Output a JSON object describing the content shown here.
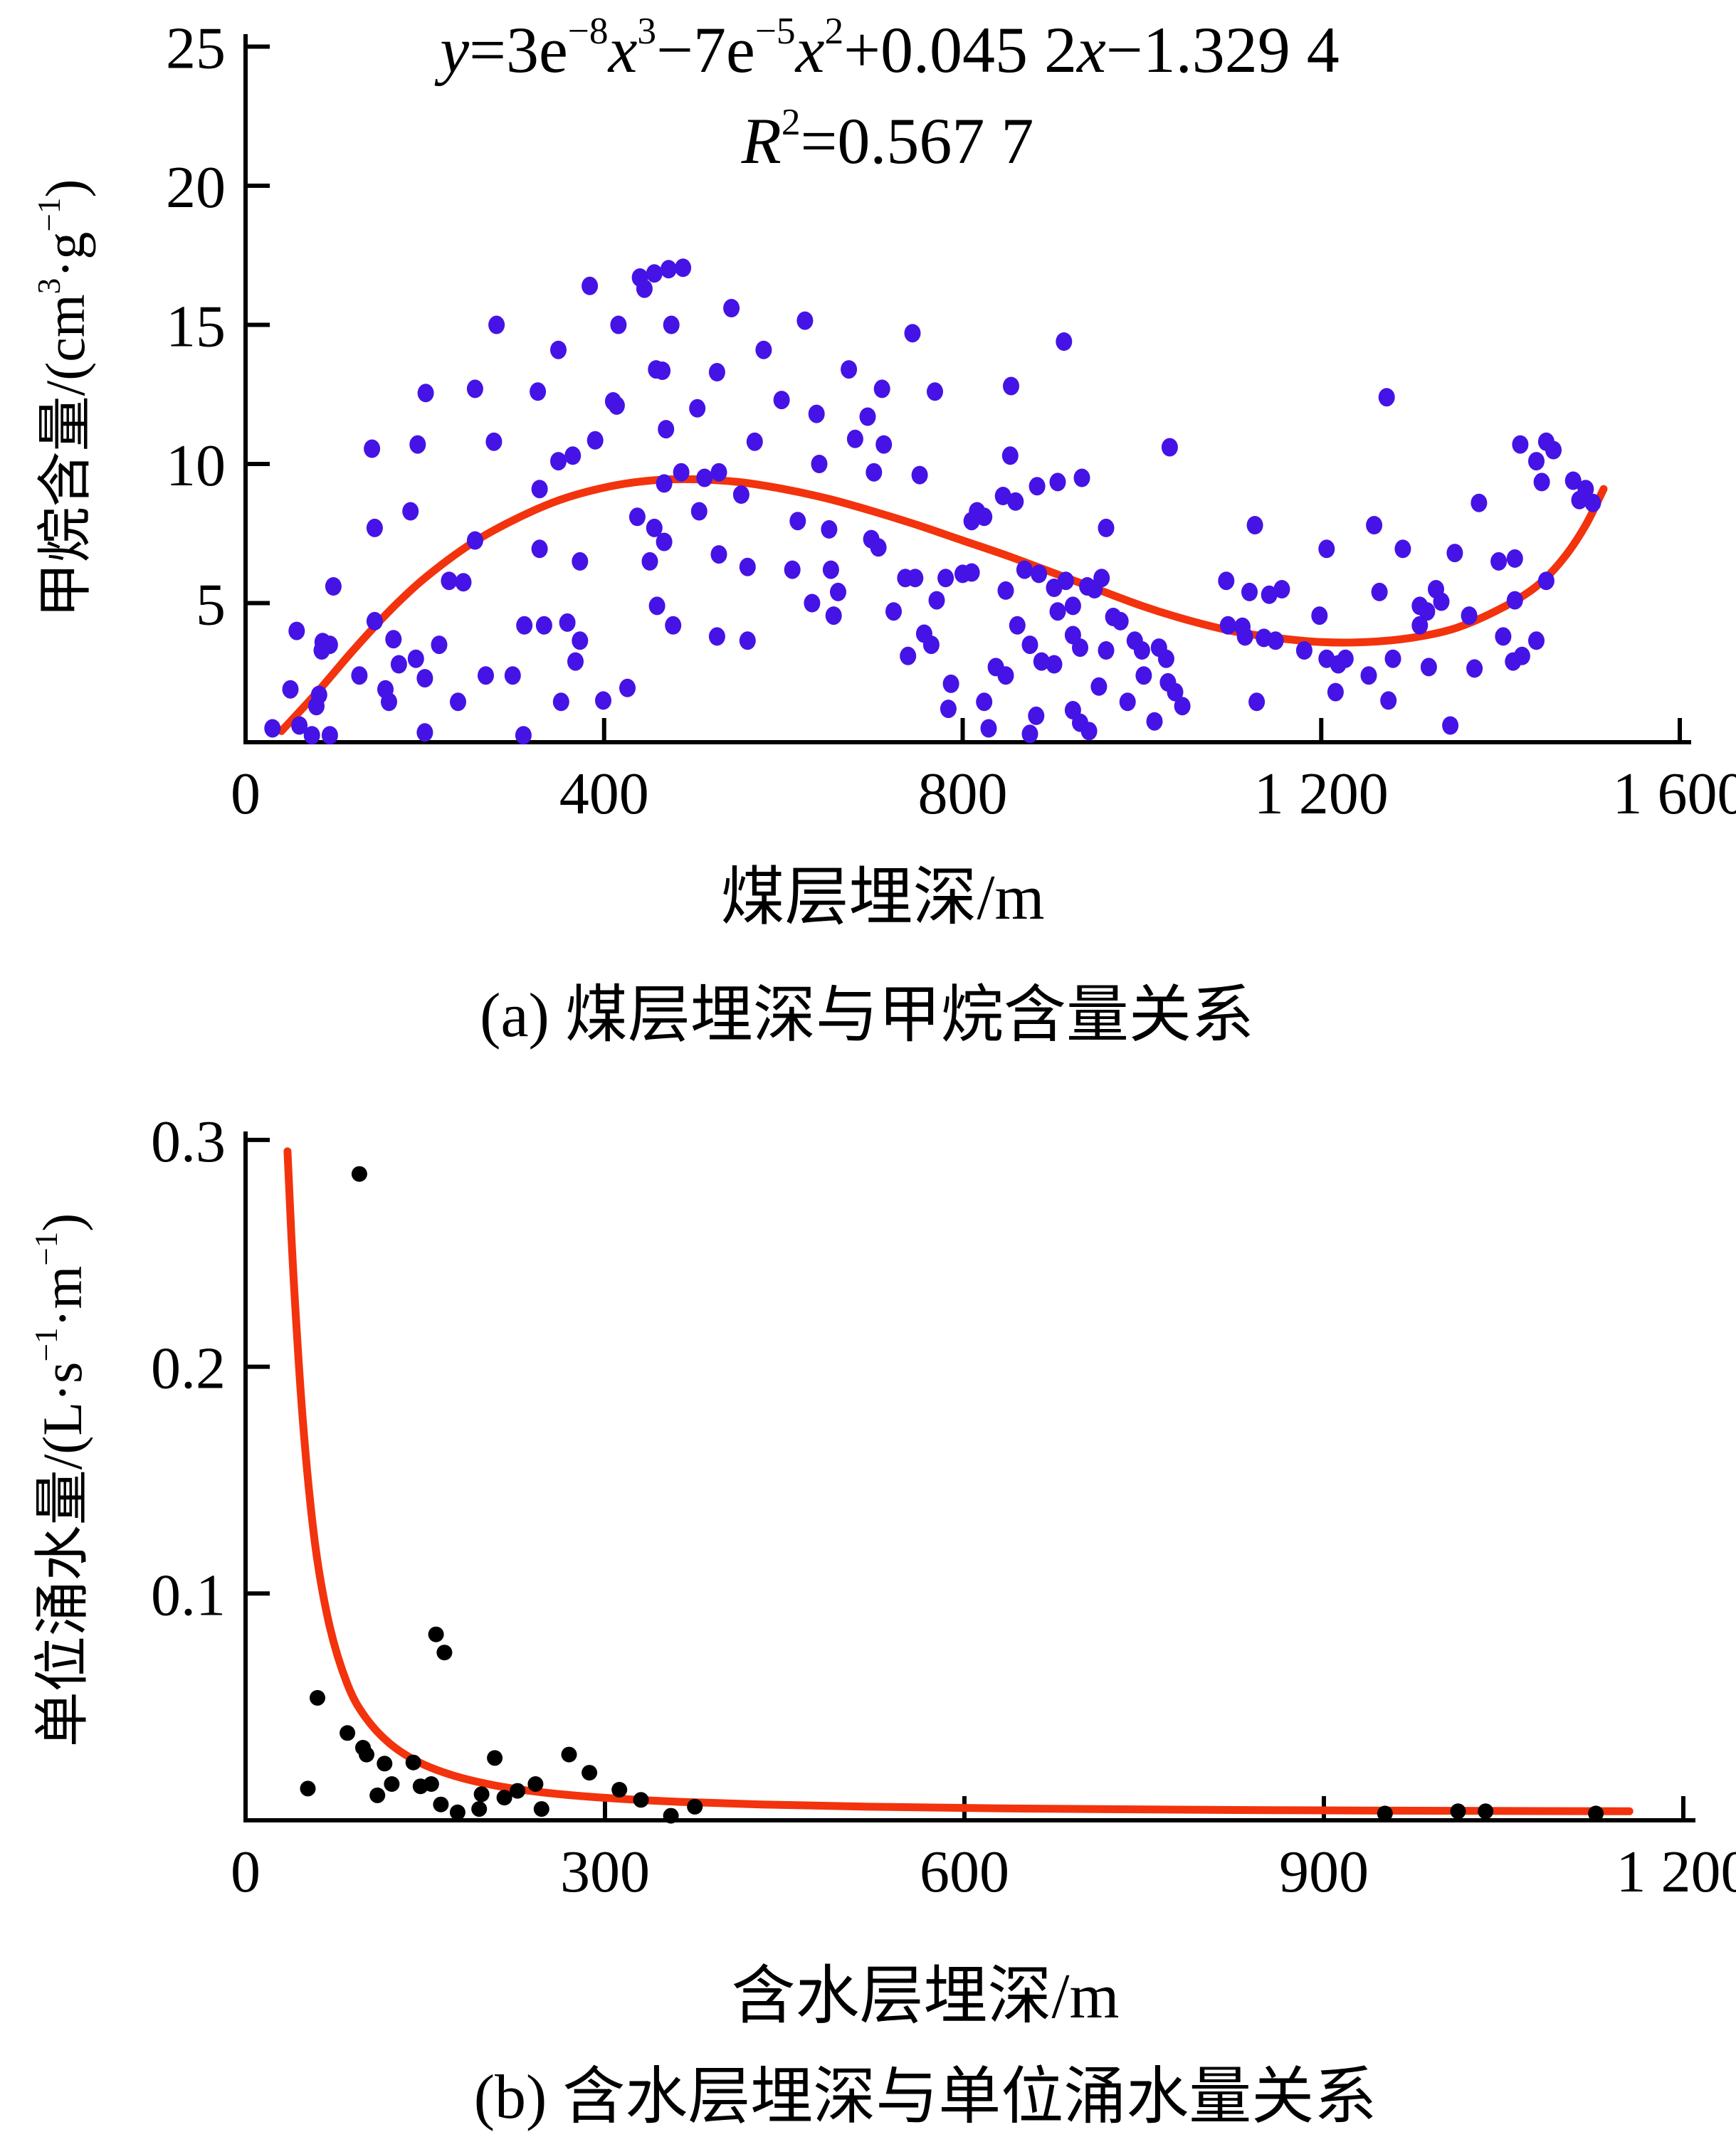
{
  "figure": {
    "background": "#ffffff",
    "accent_colors": {
      "scatter_a": "#4513e6",
      "scatter_b": "#000000",
      "fit_curve": "#f2330d",
      "axis": "#000000"
    }
  },
  "chart_data": [
    {
      "id": "a",
      "type": "scatter",
      "caption": "(a) 煤层埋深与甲烷含量关系",
      "equation_line1_parts": [
        {
          "t": "y",
          "i": true
        },
        {
          "t": "=3e"
        },
        {
          "sup": "−8"
        },
        {
          "t": "x",
          "i": true
        },
        {
          "sup": "3"
        },
        {
          "t": "−7e"
        },
        {
          "sup": "−5"
        },
        {
          "t": "x",
          "i": true
        },
        {
          "sup": "2"
        },
        {
          "t": "+0.045 2"
        },
        {
          "t": "x",
          "i": true
        },
        {
          "t": "−1.329 4"
        }
      ],
      "equation_line2_parts": [
        {
          "t": "R",
          "i": true
        },
        {
          "sup": "2"
        },
        {
          "t": "=0.567 7"
        }
      ],
      "x_axis": {
        "label": "煤层埋深/m",
        "range": [
          0,
          1600
        ],
        "ticks": [
          {
            "v": 0,
            "label": "0"
          },
          {
            "v": 400,
            "label": "400"
          },
          {
            "v": 800,
            "label": "800"
          },
          {
            "v": 1200,
            "label": "1 200"
          },
          {
            "v": 1600,
            "label": "1 600"
          }
        ]
      },
      "y_axis": {
        "label_parts": [
          {
            "t": "甲烷含量/(cm"
          },
          {
            "sup": "3"
          },
          {
            "t": "·g"
          },
          {
            "sup": "−1"
          },
          {
            "t": ")"
          }
        ],
        "range": [
          0,
          25
        ],
        "ticks": [
          {
            "v": 5,
            "label": "5"
          },
          {
            "v": 10,
            "label": "10"
          },
          {
            "v": 15,
            "label": "15"
          },
          {
            "v": 20,
            "label": "20"
          },
          {
            "v": 25,
            "label": "25"
          }
        ]
      },
      "marker": {
        "shape": "ellipse",
        "rx": 11.5,
        "ry": 13
      },
      "points": [
        [
          30,
          0.5
        ],
        [
          57,
          4.0
        ],
        [
          85,
          3.3
        ],
        [
          86,
          3.6
        ],
        [
          94,
          3.5
        ],
        [
          50,
          1.9
        ],
        [
          82,
          1.7
        ],
        [
          79,
          1.3
        ],
        [
          60,
          0.6
        ],
        [
          74,
          0.25
        ],
        [
          94,
          0.25
        ],
        [
          127,
          2.4
        ],
        [
          156,
          1.9
        ],
        [
          165,
          3.7
        ],
        [
          171,
          2.8
        ],
        [
          200,
          2.3
        ],
        [
          216,
          3.5
        ],
        [
          200,
          0.35
        ],
        [
          268,
          2.4
        ],
        [
          311,
          4.2
        ],
        [
          359,
          4.3
        ],
        [
          368,
          2.9
        ],
        [
          399,
          1.5
        ],
        [
          98,
          5.6
        ],
        [
          144,
          4.35
        ],
        [
          190,
          3.0
        ],
        [
          160,
          1.45
        ],
        [
          237,
          1.45
        ],
        [
          298,
          2.4
        ],
        [
          352,
          1.45
        ],
        [
          310,
          0.25
        ],
        [
          141,
          10.55
        ],
        [
          192,
          10.7
        ],
        [
          277,
          10.8
        ],
        [
          390,
          10.85
        ],
        [
          184,
          8.3
        ],
        [
          144,
          7.7
        ],
        [
          227,
          5.8
        ],
        [
          243,
          5.75
        ],
        [
          256,
          7.25
        ],
        [
          328,
          9.1
        ],
        [
          328,
          6.95
        ],
        [
          333,
          4.2
        ],
        [
          373,
          3.65
        ],
        [
          373,
          6.5
        ],
        [
          349,
          10.1
        ],
        [
          365,
          10.3
        ],
        [
          410,
          12.25
        ],
        [
          414,
          12.1
        ],
        [
          504,
          12.0
        ],
        [
          469,
          11.25
        ],
        [
          426,
          1.95
        ],
        [
          459,
          4.9
        ],
        [
          477,
          4.2
        ],
        [
          526,
          3.8
        ],
        [
          437,
          8.1
        ],
        [
          456,
          7.7
        ],
        [
          467,
          7.2
        ],
        [
          506,
          8.3
        ],
        [
          451,
          6.5
        ],
        [
          528,
          6.75
        ],
        [
          467,
          9.3
        ],
        [
          486,
          9.7
        ],
        [
          512,
          9.5
        ],
        [
          528,
          9.7
        ],
        [
          384,
          16.4
        ],
        [
          440,
          16.7
        ],
        [
          456,
          16.85
        ],
        [
          472,
          17.0
        ],
        [
          488,
          17.05
        ],
        [
          445,
          16.3
        ],
        [
          280,
          15.0
        ],
        [
          416,
          15.0
        ],
        [
          475,
          15.0
        ],
        [
          349,
          14.1
        ],
        [
          458,
          13.4
        ],
        [
          465,
          13.35
        ],
        [
          526,
          13.3
        ],
        [
          201,
          12.55
        ],
        [
          256,
          12.7
        ],
        [
          326,
          12.6
        ],
        [
          542,
          15.6
        ],
        [
          624,
          15.15
        ],
        [
          744,
          14.7
        ],
        [
          913,
          14.4
        ],
        [
          578,
          14.1
        ],
        [
          673,
          13.4
        ],
        [
          710,
          12.7
        ],
        [
          769,
          12.6
        ],
        [
          854,
          12.8
        ],
        [
          553,
          8.9
        ],
        [
          616,
          7.95
        ],
        [
          651,
          7.65
        ],
        [
          653,
          6.2
        ],
        [
          610,
          6.2
        ],
        [
          560,
          3.65
        ],
        [
          560,
          6.3
        ],
        [
          632,
          5.0
        ],
        [
          656,
          4.55
        ],
        [
          698,
          7.3
        ],
        [
          706,
          7.0
        ],
        [
          598,
          12.3
        ],
        [
          637,
          11.8
        ],
        [
          680,
          10.9
        ],
        [
          694,
          11.7
        ],
        [
          712,
          10.7
        ],
        [
          568,
          10.8
        ],
        [
          640,
          10.0
        ],
        [
          701,
          9.7
        ],
        [
          752,
          9.6
        ],
        [
          853,
          10.3
        ],
        [
          883,
          9.2
        ],
        [
          906,
          9.35
        ],
        [
          845,
          8.85
        ],
        [
          859,
          8.65
        ],
        [
          933,
          9.5
        ],
        [
          1031,
          10.6
        ],
        [
          816,
          8.3
        ],
        [
          824,
          8.1
        ],
        [
          810,
          7.95
        ],
        [
          960,
          7.7
        ],
        [
          661,
          5.4
        ],
        [
          736,
          5.9
        ],
        [
          747,
          5.9
        ],
        [
          781,
          5.9
        ],
        [
          800,
          6.05
        ],
        [
          810,
          6.1
        ],
        [
          771,
          5.1
        ],
        [
          723,
          4.7
        ],
        [
          757,
          3.9
        ],
        [
          765,
          3.5
        ],
        [
          739,
          3.1
        ],
        [
          869,
          6.2
        ],
        [
          885,
          6.05
        ],
        [
          902,
          5.55
        ],
        [
          915,
          5.8
        ],
        [
          906,
          4.7
        ],
        [
          923,
          4.9
        ],
        [
          939,
          5.6
        ],
        [
          947,
          5.5
        ],
        [
          955,
          5.9
        ],
        [
          848,
          5.45
        ],
        [
          861,
          4.2
        ],
        [
          837,
          2.7
        ],
        [
          848,
          2.4
        ],
        [
          824,
          1.45
        ],
        [
          787,
          2.1
        ],
        [
          784,
          1.2
        ],
        [
          875,
          3.5
        ],
        [
          888,
          2.9
        ],
        [
          902,
          2.8
        ],
        [
          923,
          3.85
        ],
        [
          931,
          3.4
        ],
        [
          968,
          4.5
        ],
        [
          976,
          4.35
        ],
        [
          960,
          3.3
        ],
        [
          992,
          3.65
        ],
        [
          1000,
          3.3
        ],
        [
          1019,
          3.4
        ],
        [
          1027,
          3.0
        ],
        [
          1002,
          2.4
        ],
        [
          1029,
          2.15
        ],
        [
          1037,
          1.8
        ],
        [
          984,
          1.45
        ],
        [
          952,
          2.0
        ],
        [
          829,
          0.5
        ],
        [
          882,
          0.95
        ],
        [
          875,
          0.3
        ],
        [
          923,
          1.15
        ],
        [
          931,
          0.7
        ],
        [
          941,
          0.4
        ],
        [
          1014,
          0.75
        ],
        [
          1045,
          1.3
        ],
        [
          1273,
          12.4
        ],
        [
          1422,
          10.7
        ],
        [
          1451,
          10.8
        ],
        [
          1459,
          10.5
        ],
        [
          1440,
          10.1
        ],
        [
          1446,
          9.35
        ],
        [
          1481,
          9.4
        ],
        [
          1488,
          8.7
        ],
        [
          1495,
          9.1
        ],
        [
          1503,
          8.6
        ],
        [
          1376,
          8.6
        ],
        [
          1126,
          7.8
        ],
        [
          1259,
          7.8
        ],
        [
          1291,
          6.95
        ],
        [
          1349,
          6.8
        ],
        [
          1206,
          6.95
        ],
        [
          1398,
          6.5
        ],
        [
          1416,
          6.6
        ],
        [
          1094,
          5.8
        ],
        [
          1120,
          5.4
        ],
        [
          1142,
          5.3
        ],
        [
          1156,
          5.5
        ],
        [
          1265,
          5.4
        ],
        [
          1328,
          5.5
        ],
        [
          1334,
          5.05
        ],
        [
          1310,
          4.9
        ],
        [
          1318,
          4.7
        ],
        [
          1310,
          4.2
        ],
        [
          1198,
          4.55
        ],
        [
          1365,
          4.55
        ],
        [
          1416,
          5.1
        ],
        [
          1451,
          5.8
        ],
        [
          1403,
          3.8
        ],
        [
          1440,
          3.65
        ],
        [
          1096,
          4.2
        ],
        [
          1112,
          4.15
        ],
        [
          1115,
          3.8
        ],
        [
          1136,
          3.75
        ],
        [
          1149,
          3.65
        ],
        [
          1181,
          3.3
        ],
        [
          1206,
          3.0
        ],
        [
          1219,
          2.8
        ],
        [
          1227,
          3.0
        ],
        [
          1253,
          2.4
        ],
        [
          1280,
          3.0
        ],
        [
          1320,
          2.7
        ],
        [
          1371,
          2.65
        ],
        [
          1414,
          2.9
        ],
        [
          1424,
          3.1
        ],
        [
          1128,
          1.45
        ],
        [
          1216,
          1.8
        ],
        [
          1275,
          1.5
        ],
        [
          1344,
          0.6
        ]
      ],
      "fit_curve": [
        [
          40,
          0.4
        ],
        [
          80,
          1.8
        ],
        [
          120,
          3.3
        ],
        [
          160,
          4.7
        ],
        [
          200,
          5.9
        ],
        [
          250,
          7.1
        ],
        [
          300,
          8.0
        ],
        [
          350,
          8.7
        ],
        [
          400,
          9.15
        ],
        [
          450,
          9.4
        ],
        [
          500,
          9.45
        ],
        [
          550,
          9.35
        ],
        [
          600,
          9.1
        ],
        [
          650,
          8.75
        ],
        [
          700,
          8.3
        ],
        [
          750,
          7.8
        ],
        [
          800,
          7.25
        ],
        [
          850,
          6.7
        ],
        [
          900,
          6.1
        ],
        [
          950,
          5.5
        ],
        [
          1000,
          4.9
        ],
        [
          1050,
          4.4
        ],
        [
          1100,
          4.0
        ],
        [
          1150,
          3.75
        ],
        [
          1200,
          3.6
        ],
        [
          1250,
          3.6
        ],
        [
          1300,
          3.75
        ],
        [
          1350,
          4.1
        ],
        [
          1400,
          4.8
        ],
        [
          1440,
          5.6
        ],
        [
          1470,
          6.6
        ],
        [
          1495,
          7.8
        ],
        [
          1515,
          9.1
        ]
      ]
    },
    {
      "id": "b",
      "type": "scatter",
      "caption": "(b) 含水层埋深与单位涌水量关系",
      "x_axis": {
        "label": "含水层埋深/m",
        "range": [
          0,
          1200
        ],
        "ticks": [
          {
            "v": 0,
            "label": "0"
          },
          {
            "v": 300,
            "label": "300"
          },
          {
            "v": 600,
            "label": "600"
          },
          {
            "v": 900,
            "label": "900"
          },
          {
            "v": 1200,
            "label": "1 200"
          }
        ]
      },
      "y_axis": {
        "label_parts": [
          {
            "t": "单位涌水量/(L·s"
          },
          {
            "sup": "−1"
          },
          {
            "t": "·m"
          },
          {
            "sup": "−1"
          },
          {
            "t": ")"
          }
        ],
        "range": [
          0,
          0.3
        ],
        "ticks": [
          {
            "v": 0.1,
            "label": "0.1"
          },
          {
            "v": 0.2,
            "label": "0.2"
          },
          {
            "v": 0.3,
            "label": "0.3"
          }
        ]
      },
      "marker": {
        "shape": "circle",
        "r": 11
      },
      "points": [
        [
          52,
          0.014
        ],
        [
          60,
          0.054
        ],
        [
          85,
          0.0385
        ],
        [
          95,
          0.285
        ],
        [
          98,
          0.032
        ],
        [
          101,
          0.029
        ],
        [
          110,
          0.011
        ],
        [
          116,
          0.025
        ],
        [
          122,
          0.016
        ],
        [
          140,
          0.0255
        ],
        [
          146,
          0.015
        ],
        [
          155,
          0.016
        ],
        [
          159,
          0.082
        ],
        [
          166,
          0.074
        ],
        [
          163,
          0.007
        ],
        [
          177,
          0.0035
        ],
        [
          195,
          0.005
        ],
        [
          197,
          0.0115
        ],
        [
          208,
          0.0275
        ],
        [
          216,
          0.01
        ],
        [
          227,
          0.013
        ],
        [
          242,
          0.016
        ],
        [
          247,
          0.005
        ],
        [
          270,
          0.029
        ],
        [
          287,
          0.021
        ],
        [
          312,
          0.0135
        ],
        [
          330,
          0.009
        ],
        [
          355,
          0.002
        ],
        [
          375,
          0.006
        ],
        [
          951,
          0.003
        ],
        [
          1012,
          0.004
        ],
        [
          1035,
          0.004
        ],
        [
          1127,
          0.003
        ]
      ],
      "fit_curve": [
        [
          35,
          0.295
        ],
        [
          40,
          0.24
        ],
        [
          48,
          0.175
        ],
        [
          58,
          0.122
        ],
        [
          70,
          0.086
        ],
        [
          85,
          0.06
        ],
        [
          100,
          0.0455
        ],
        [
          120,
          0.034
        ],
        [
          145,
          0.0255
        ],
        [
          175,
          0.0195
        ],
        [
          210,
          0.0152
        ],
        [
          250,
          0.0122
        ],
        [
          300,
          0.0099
        ],
        [
          360,
          0.0082
        ],
        [
          430,
          0.007
        ],
        [
          520,
          0.006
        ],
        [
          640,
          0.0052
        ],
        [
          800,
          0.0046
        ],
        [
          1000,
          0.0042
        ],
        [
          1155,
          0.004
        ]
      ]
    }
  ]
}
